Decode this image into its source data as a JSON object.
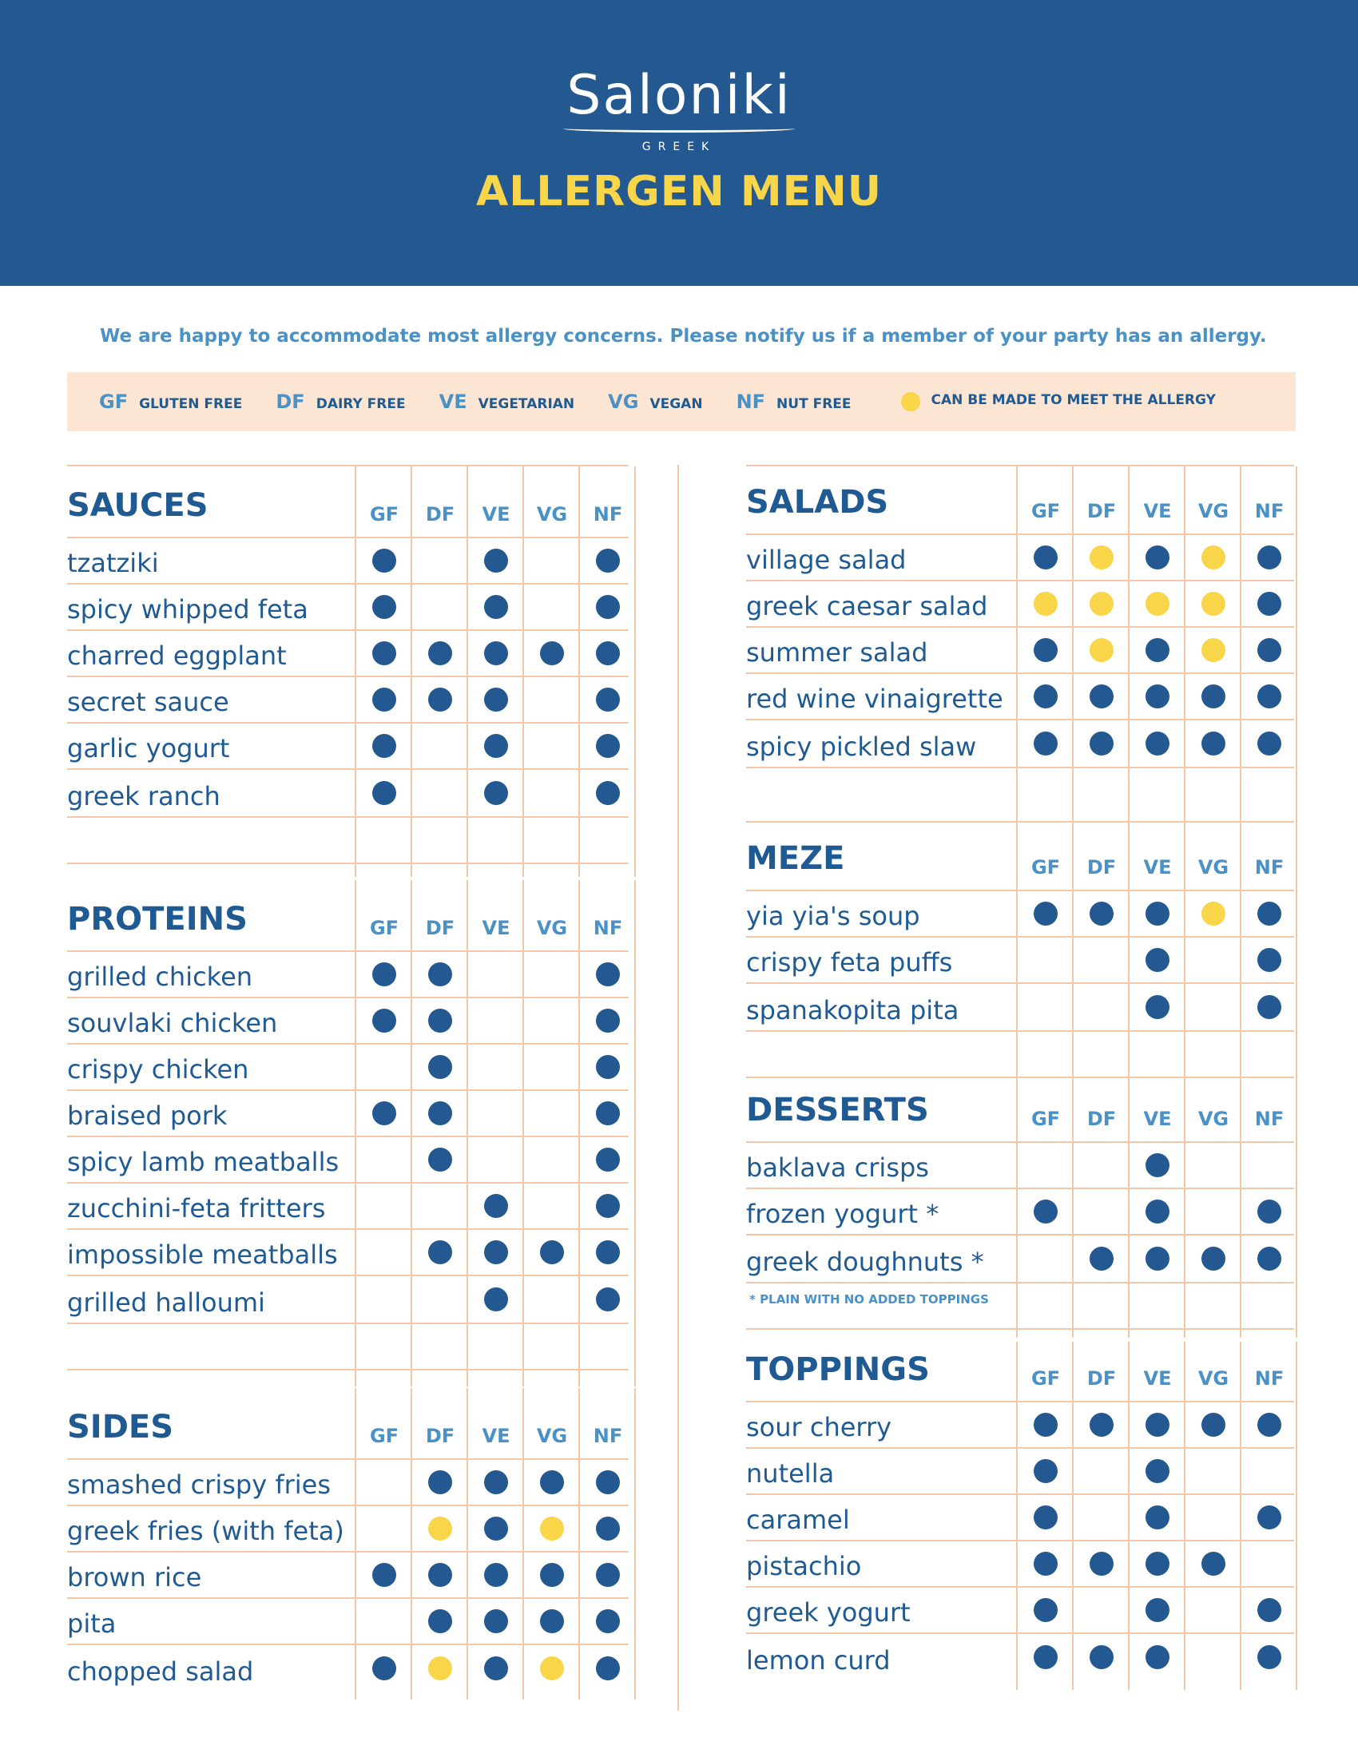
{
  "header": {
    "brand": "Saloniki",
    "brand_sub": "GREEK",
    "title": "ALLERGEN MENU"
  },
  "intro": "We are happy to accommodate most allergy concerns. Please notify us if a member of your party has an allergy.",
  "legend": {
    "items": [
      {
        "code": "GF",
        "label": "GLUTEN FREE"
      },
      {
        "code": "DF",
        "label": "DAIRY FREE"
      },
      {
        "code": "VE",
        "label": "VEGETARIAN"
      },
      {
        "code": "VG",
        "label": "VEGAN"
      },
      {
        "code": "NF",
        "label": "NUT FREE"
      }
    ],
    "can_label": "CAN BE MADE TO MEET THE ALLERGY"
  },
  "colors": {
    "navy": "#245890",
    "yellow": "#f9d54a",
    "peach": "#fde5d3",
    "grid": "#f2c6a6",
    "accent": "#4a92c6"
  },
  "columns": [
    "GF",
    "DF",
    "VE",
    "VG",
    "NF"
  ],
  "sections": {
    "sauces": {
      "title": "SAUCES",
      "items": [
        {
          "name": "tzatziki",
          "marks": [
            "Y",
            "",
            "Y",
            "",
            "Y"
          ]
        },
        {
          "name": "spicy whipped feta",
          "marks": [
            "Y",
            "",
            "Y",
            "",
            "Y"
          ]
        },
        {
          "name": "charred eggplant",
          "marks": [
            "Y",
            "Y",
            "Y",
            "Y",
            "Y"
          ]
        },
        {
          "name": "secret sauce",
          "marks": [
            "Y",
            "Y",
            "Y",
            "",
            "Y"
          ]
        },
        {
          "name": "garlic yogurt",
          "marks": [
            "Y",
            "",
            "Y",
            "",
            "Y"
          ]
        },
        {
          "name": "greek ranch",
          "marks": [
            "Y",
            "",
            "Y",
            "",
            "Y"
          ]
        }
      ]
    },
    "proteins": {
      "title": "PROTEINS",
      "items": [
        {
          "name": "grilled chicken",
          "marks": [
            "Y",
            "Y",
            "",
            "",
            "Y"
          ]
        },
        {
          "name": "souvlaki chicken",
          "marks": [
            "Y",
            "Y",
            "",
            "",
            "Y"
          ]
        },
        {
          "name": "crispy chicken",
          "marks": [
            "",
            "Y",
            "",
            "",
            "Y"
          ]
        },
        {
          "name": "braised pork",
          "marks": [
            "Y",
            "Y",
            "",
            "",
            "Y"
          ]
        },
        {
          "name": "spicy lamb meatballs",
          "marks": [
            "",
            "Y",
            "",
            "",
            "Y"
          ]
        },
        {
          "name": "zucchini-feta fritters",
          "marks": [
            "",
            "",
            "Y",
            "",
            "Y"
          ]
        },
        {
          "name": "impossible meatballs",
          "marks": [
            "",
            "Y",
            "Y",
            "Y",
            "Y"
          ]
        },
        {
          "name": "grilled halloumi",
          "marks": [
            "",
            "",
            "Y",
            "",
            "Y"
          ]
        }
      ]
    },
    "sides": {
      "title": "SIDES",
      "items": [
        {
          "name": "smashed crispy fries",
          "marks": [
            "",
            "Y",
            "Y",
            "Y",
            "Y"
          ]
        },
        {
          "name": "greek fries (with feta)",
          "marks": [
            "",
            "C",
            "Y",
            "C",
            "Y"
          ]
        },
        {
          "name": "brown rice",
          "marks": [
            "Y",
            "Y",
            "Y",
            "Y",
            "Y"
          ]
        },
        {
          "name": "pita",
          "marks": [
            "",
            "Y",
            "Y",
            "Y",
            "Y"
          ]
        },
        {
          "name": "chopped salad",
          "marks": [
            "Y",
            "C",
            "Y",
            "C",
            "Y"
          ]
        }
      ]
    },
    "salads": {
      "title": "SALADS",
      "items": [
        {
          "name": "village salad",
          "marks": [
            "Y",
            "C",
            "Y",
            "C",
            "Y"
          ]
        },
        {
          "name": "greek caesar salad",
          "marks": [
            "C",
            "C",
            "C",
            "C",
            "Y"
          ]
        },
        {
          "name": "summer salad",
          "marks": [
            "Y",
            "C",
            "Y",
            "C",
            "Y"
          ]
        },
        {
          "name": "red wine vinaigrette",
          "marks": [
            "Y",
            "Y",
            "Y",
            "Y",
            "Y"
          ]
        },
        {
          "name": "spicy pickled slaw",
          "marks": [
            "Y",
            "Y",
            "Y",
            "Y",
            "Y"
          ]
        }
      ]
    },
    "meze": {
      "title": "MEZE",
      "items": [
        {
          "name": "yia yia's soup",
          "marks": [
            "Y",
            "Y",
            "Y",
            "C",
            "Y"
          ]
        },
        {
          "name": "crispy feta puffs",
          "marks": [
            "",
            "",
            "Y",
            "",
            "Y"
          ]
        },
        {
          "name": "spanakopita pita",
          "marks": [
            "",
            "",
            "Y",
            "",
            "Y"
          ]
        }
      ]
    },
    "desserts": {
      "title": "DESSERTS",
      "items": [
        {
          "name": "baklava crisps",
          "marks": [
            "",
            "",
            "Y",
            "",
            ""
          ]
        },
        {
          "name": "frozen yogurt *",
          "marks": [
            "Y",
            "",
            "Y",
            "",
            "Y"
          ]
        },
        {
          "name": "greek doughnuts *",
          "marks": [
            "",
            "Y",
            "Y",
            "Y",
            "Y"
          ]
        }
      ],
      "note": "* PLAIN WITH NO ADDED TOPPINGS"
    },
    "toppings": {
      "title": "TOPPINGS",
      "items": [
        {
          "name": "sour cherry",
          "marks": [
            "Y",
            "Y",
            "Y",
            "Y",
            "Y"
          ]
        },
        {
          "name": "nutella",
          "marks": [
            "Y",
            "",
            "Y",
            "",
            ""
          ]
        },
        {
          "name": "caramel",
          "marks": [
            "Y",
            "",
            "Y",
            "",
            "Y"
          ]
        },
        {
          "name": "pistachio",
          "marks": [
            "Y",
            "Y",
            "Y",
            "Y",
            ""
          ]
        },
        {
          "name": "greek yogurt",
          "marks": [
            "Y",
            "",
            "Y",
            "",
            "Y"
          ]
        },
        {
          "name": "lemon curd",
          "marks": [
            "Y",
            "Y",
            "Y",
            "",
            "Y"
          ]
        }
      ]
    }
  }
}
